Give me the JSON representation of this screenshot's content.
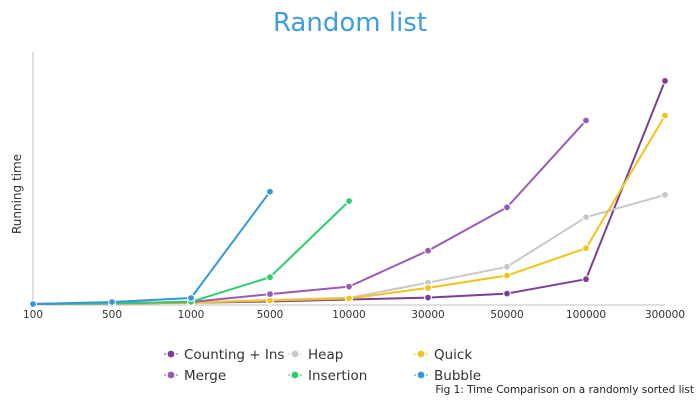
{
  "chart_data": {
    "type": "line",
    "title": "Random list",
    "ylabel": "Running time",
    "xlabel": "",
    "categories": [
      "100",
      "500",
      "1000",
      "5000",
      "10000",
      "30000",
      "50000",
      "100000",
      "300000"
    ],
    "ylim": [
      0,
      100
    ],
    "grid": false,
    "legend_position": "bottom",
    "series": [
      {
        "name": "Counting + Ins",
        "color": "#7b3f98",
        "values": [
          0,
          0.2,
          0.5,
          1,
          1.8,
          2.6,
          4.2,
          10,
          90
        ]
      },
      {
        "name": "Heap",
        "color": "#c8c8c8",
        "values": [
          0,
          0.2,
          0.6,
          1.6,
          2.5,
          8.6,
          15,
          35,
          44
        ]
      },
      {
        "name": "Quick",
        "color": "#f0c419",
        "values": [
          0,
          0.2,
          0.5,
          1.4,
          2.2,
          6.5,
          11.5,
          22.5,
          76
        ]
      },
      {
        "name": "Merge",
        "color": "#9b59b6",
        "values": [
          0,
          0.3,
          0.8,
          4,
          7,
          21.5,
          39,
          74,
          null
        ]
      },
      {
        "name": "Insertion",
        "color": "#2ecc71",
        "values": [
          0,
          0.3,
          0.9,
          10.8,
          41.5,
          null,
          null,
          null,
          null
        ]
      },
      {
        "name": "Bubble",
        "color": "#3498db",
        "values": [
          0,
          0.8,
          2.4,
          45.3,
          null,
          null,
          null,
          null,
          null
        ]
      }
    ]
  },
  "caption": "Fig 1: Time Comparison on a randomly sorted list"
}
